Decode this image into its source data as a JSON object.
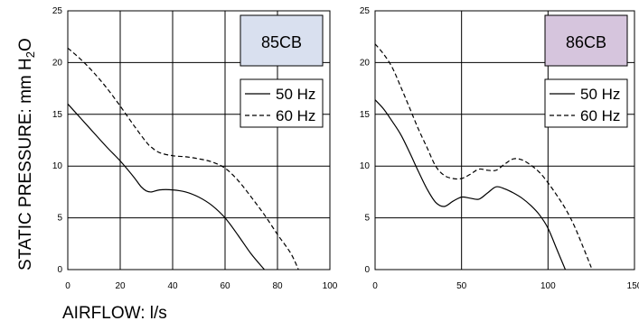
{
  "ylabel_main": "STATIC PRESSURE: mm H",
  "ylabel_sub": "2",
  "ylabel_tail": "O",
  "xlabel": "AIRFLOW: l/s",
  "chart_data": [
    {
      "type": "line",
      "title": "85CB",
      "title_fill": "#d9e0ef",
      "xlim": [
        0,
        100
      ],
      "ylim": [
        0,
        25
      ],
      "xticks": [
        0,
        20,
        40,
        60,
        80,
        100
      ],
      "yticks": [
        0,
        5,
        10,
        15,
        20,
        25
      ],
      "grid": true,
      "legend_position": "top-right",
      "series": [
        {
          "name": "50 Hz",
          "style": "solid",
          "x": [
            0,
            5,
            10,
            15,
            20,
            25,
            28,
            30,
            32,
            35,
            40,
            45,
            50,
            55,
            60,
            65,
            70,
            75
          ],
          "y": [
            16,
            14.6,
            13.2,
            11.8,
            10.5,
            9.0,
            8.0,
            7.6,
            7.5,
            7.7,
            7.7,
            7.5,
            7.0,
            6.2,
            5.0,
            3.3,
            1.5,
            0
          ]
        },
        {
          "name": "60 Hz",
          "style": "dashed",
          "x": [
            0,
            5,
            10,
            15,
            20,
            25,
            30,
            32,
            35,
            40,
            45,
            50,
            55,
            60,
            65,
            70,
            75,
            80,
            85,
            88
          ],
          "y": [
            21.4,
            20.3,
            19.0,
            17.5,
            15.8,
            14.0,
            12.3,
            11.8,
            11.3,
            11.0,
            10.9,
            10.7,
            10.4,
            9.8,
            8.6,
            7.0,
            5.3,
            3.4,
            1.6,
            0
          ]
        }
      ]
    },
    {
      "type": "line",
      "title": "86CB",
      "title_fill": "#d6c5dd",
      "xlim": [
        0,
        150
      ],
      "ylim": [
        0,
        25
      ],
      "xticks": [
        0,
        50,
        100,
        150
      ],
      "xtick_labels": [
        "0",
        "50",
        "100",
        "150"
      ],
      "yticks": [
        0,
        5,
        10,
        15,
        20,
        25
      ],
      "grid": true,
      "legend_position": "top-right",
      "series": [
        {
          "name": "50 Hz",
          "style": "solid",
          "x": [
            0,
            5,
            10,
            15,
            20,
            25,
            30,
            35,
            40,
            45,
            50,
            55,
            60,
            65,
            70,
            75,
            80,
            85,
            90,
            95,
            100,
            105,
            110
          ],
          "y": [
            16.4,
            15.5,
            14.3,
            13.0,
            11.3,
            9.5,
            7.8,
            6.5,
            6.1,
            6.6,
            7.0,
            6.9,
            6.8,
            7.4,
            8.0,
            7.8,
            7.4,
            6.9,
            6.2,
            5.3,
            4.0,
            2.0,
            0
          ]
        },
        {
          "name": "60 Hz",
          "style": "dashed",
          "x": [
            0,
            5,
            10,
            15,
            20,
            25,
            30,
            35,
            40,
            45,
            50,
            55,
            60,
            65,
            70,
            75,
            80,
            85,
            90,
            95,
            100,
            105,
            110,
            115,
            120,
            125
          ],
          "y": [
            21.8,
            20.8,
            19.5,
            17.6,
            15.6,
            13.6,
            11.8,
            10.0,
            9.1,
            8.8,
            8.8,
            9.2,
            9.7,
            9.6,
            9.6,
            10.2,
            10.7,
            10.6,
            10.1,
            9.4,
            8.4,
            7.2,
            5.9,
            4.3,
            2.3,
            0.2
          ]
        }
      ]
    }
  ]
}
